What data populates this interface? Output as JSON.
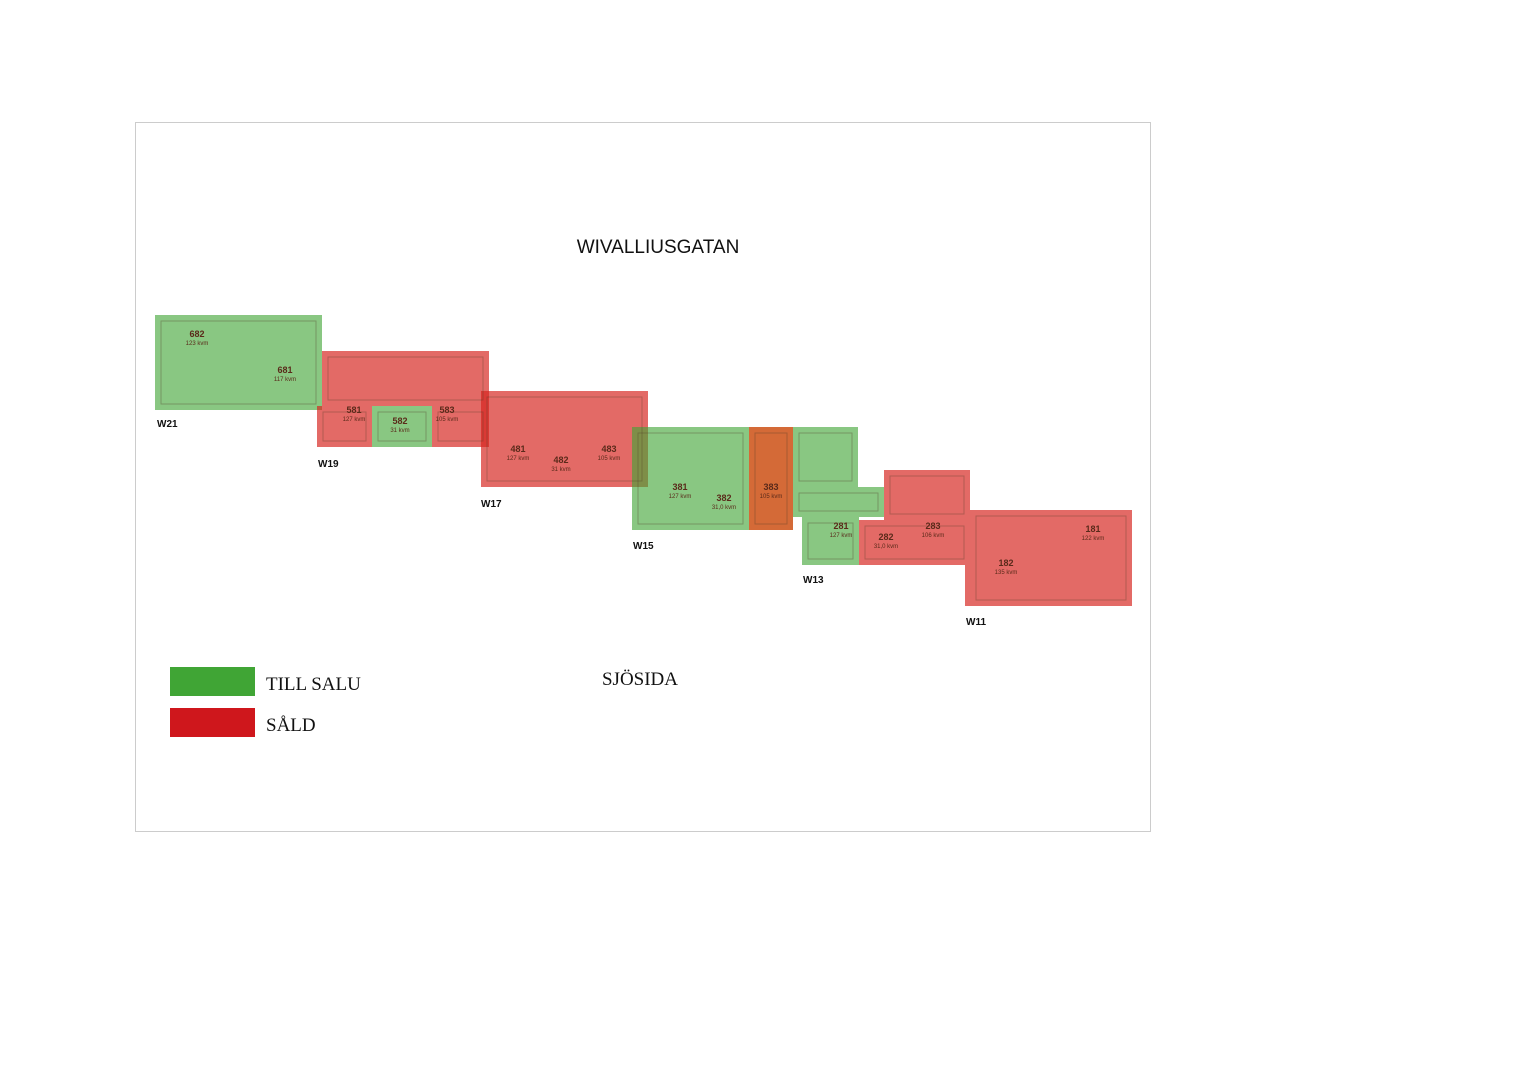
{
  "street": "WIVALLIUSGATAN",
  "seaside": "SJÖSIDA",
  "legend": [
    {
      "label": "TILL SALU",
      "color": "#40a535"
    },
    {
      "label": "SÅLD",
      "color": "#cf171c"
    }
  ],
  "buildings": [
    "W21",
    "W19",
    "W17",
    "W15",
    "W13",
    "W11"
  ],
  "units": [
    {
      "number": "682",
      "area": "123 kvm"
    },
    {
      "number": "681",
      "area": "117 kvm"
    },
    {
      "number": "581",
      "area": "127 kvm"
    },
    {
      "number": "582",
      "area": "31 kvm"
    },
    {
      "number": "583",
      "area": "105 kvm"
    },
    {
      "number": "481",
      "area": "127 kvm"
    },
    {
      "number": "482",
      "area": "31 kvm"
    },
    {
      "number": "483",
      "area": "105 kvm"
    },
    {
      "number": "381",
      "area": "127 kvm"
    },
    {
      "number": "382",
      "area": "31,0 kvm"
    },
    {
      "number": "383",
      "area": "105 kvm"
    },
    {
      "number": "281",
      "area": "127 kvm"
    },
    {
      "number": "282",
      "area": "31,0 kvm"
    },
    {
      "number": "283",
      "area": "106 kvm"
    },
    {
      "number": "181",
      "area": "122 kvm"
    },
    {
      "number": "182",
      "area": "135 kvm"
    }
  ]
}
